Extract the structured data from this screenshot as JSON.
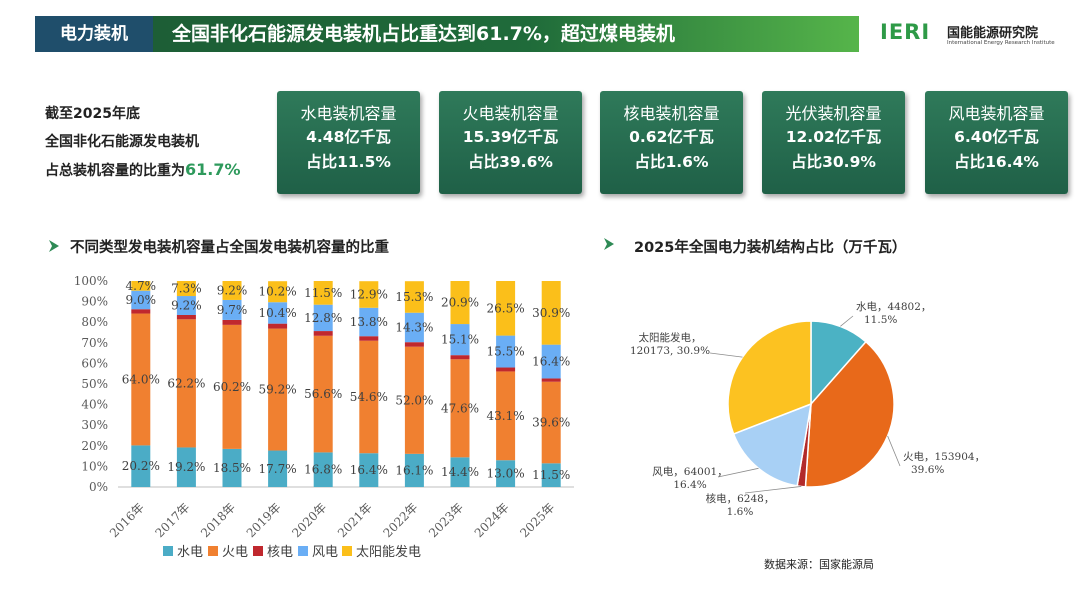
{
  "header": {
    "tag": "电力装机",
    "title": "全国非化石能源发电装机占比重达到61.7%，超过煤电装机"
  },
  "logo": {
    "mark": "IERI",
    "name": "国能能源研究院",
    "english": "International Energy Research Institute"
  },
  "summary": {
    "line1": "截至2025年底",
    "line2": "全国非化石能源发电装机",
    "line3": "占总装机容量的比重为",
    "highlight": "61.7%"
  },
  "cards": [
    {
      "title": "水电装机容量",
      "value": "4.48亿千瓦",
      "share": "占比11.5%"
    },
    {
      "title": "火电装机容量",
      "value": "15.39亿千瓦",
      "share": "占比39.6%"
    },
    {
      "title": "核电装机容量",
      "value": "0.62亿千瓦",
      "share": "占比1.6%"
    },
    {
      "title": "光伏装机容量",
      "value": "12.02亿千瓦",
      "share": "占比30.9%"
    },
    {
      "title": "风电装机容量",
      "value": "6.40亿千瓦",
      "share": "占比16.4%"
    }
  ],
  "source": "数据来源：国家能源局",
  "colors": {
    "hydro": "#4bacc6",
    "thermal": "#f08030",
    "nuclear": "#c0282e",
    "wind": "#6aaef5",
    "solar": "#fbbf1a",
    "pie_thermal": "#e8691a",
    "pie_solar": "#fcc221",
    "pie_wind": "#a8d0f5",
    "pie_hydro": "#4bb2c4",
    "pie_nuclear": "#b22a2a",
    "card_green": "#2a6f52"
  },
  "chart_data": [
    {
      "type": "bar",
      "stacked": true,
      "title": "不同类型发电装机容量占全国发电装机容量的比重",
      "categories": [
        "2016年",
        "2017年",
        "2018年",
        "2019年",
        "2020年",
        "2021年",
        "2022年",
        "2023年",
        "2024年",
        "2025年"
      ],
      "y_ticks": [
        "0%",
        "10%",
        "20%",
        "30%",
        "40%",
        "50%",
        "60%",
        "70%",
        "80%",
        "90%",
        "100%"
      ],
      "ylim": [
        0,
        100
      ],
      "legend_position": "bottom",
      "series": [
        {
          "name": "水电",
          "values": [
            20.2,
            19.2,
            18.5,
            17.7,
            16.8,
            16.4,
            16.1,
            14.4,
            13.0,
            11.5
          ],
          "labels": [
            "20.2%",
            "19.2%",
            "18.5%",
            "17.7%",
            "16.8%",
            "16.4%",
            "16.1%",
            "14.4%",
            "13.0%",
            "11.5%"
          ]
        },
        {
          "name": "火电",
          "values": [
            64.0,
            62.2,
            60.2,
            59.2,
            56.6,
            54.6,
            52.0,
            47.6,
            43.1,
            39.6
          ],
          "labels": [
            "64.0%",
            "62.2%",
            "60.2%",
            "59.2%",
            "56.6%",
            "54.6%",
            "52.0%",
            "47.6%",
            "43.1%",
            "39.6%"
          ]
        },
        {
          "name": "核电",
          "values": [
            2.1,
            2.1,
            2.4,
            2.4,
            2.3,
            2.2,
            2.2,
            2.0,
            1.9,
            1.6
          ],
          "labels": []
        },
        {
          "name": "风电",
          "values": [
            9.0,
            9.2,
            9.7,
            10.4,
            12.8,
            13.8,
            14.3,
            15.1,
            15.5,
            16.4
          ],
          "labels": [
            "9.0%",
            "9.2%",
            "9.7%",
            "10.4%",
            "12.8%",
            "13.8%",
            "14.3%",
            "15.1%",
            "15.5%",
            "16.4%"
          ]
        },
        {
          "name": "太阳能发电",
          "values": [
            4.7,
            7.3,
            9.2,
            10.2,
            11.5,
            12.9,
            15.3,
            20.9,
            26.5,
            30.9
          ],
          "labels": [
            "4.7%",
            "7.3%",
            "9.2%",
            "10.2%",
            "11.5%",
            "12.9%",
            "15.3%",
            "20.9%",
            "26.5%",
            "30.9%"
          ]
        }
      ]
    },
    {
      "type": "pie",
      "title": "2025年全国电力装机结构占比（万千瓦）",
      "slices": [
        {
          "name": "水电",
          "value": 44802,
          "percent": 11.5,
          "label_line1": "水电，44802，",
          "label_line2": "11.5%"
        },
        {
          "name": "火电",
          "value": 153904,
          "percent": 39.6,
          "label_line1": "火电，153904，",
          "label_line2": "39.6%"
        },
        {
          "name": "核电",
          "value": 6248,
          "percent": 1.6,
          "label_line1": "核电，6248，",
          "label_line2": "1.6%"
        },
        {
          "name": "风电",
          "value": 64001,
          "percent": 16.4,
          "label_line1": "风电，64001，",
          "label_line2": "16.4%"
        },
        {
          "name": "太阳能发电",
          "value": 120173,
          "percent": 30.9,
          "label_line1": "太阳能发电，",
          "label_line2": "120173, 30.9%"
        }
      ]
    }
  ]
}
